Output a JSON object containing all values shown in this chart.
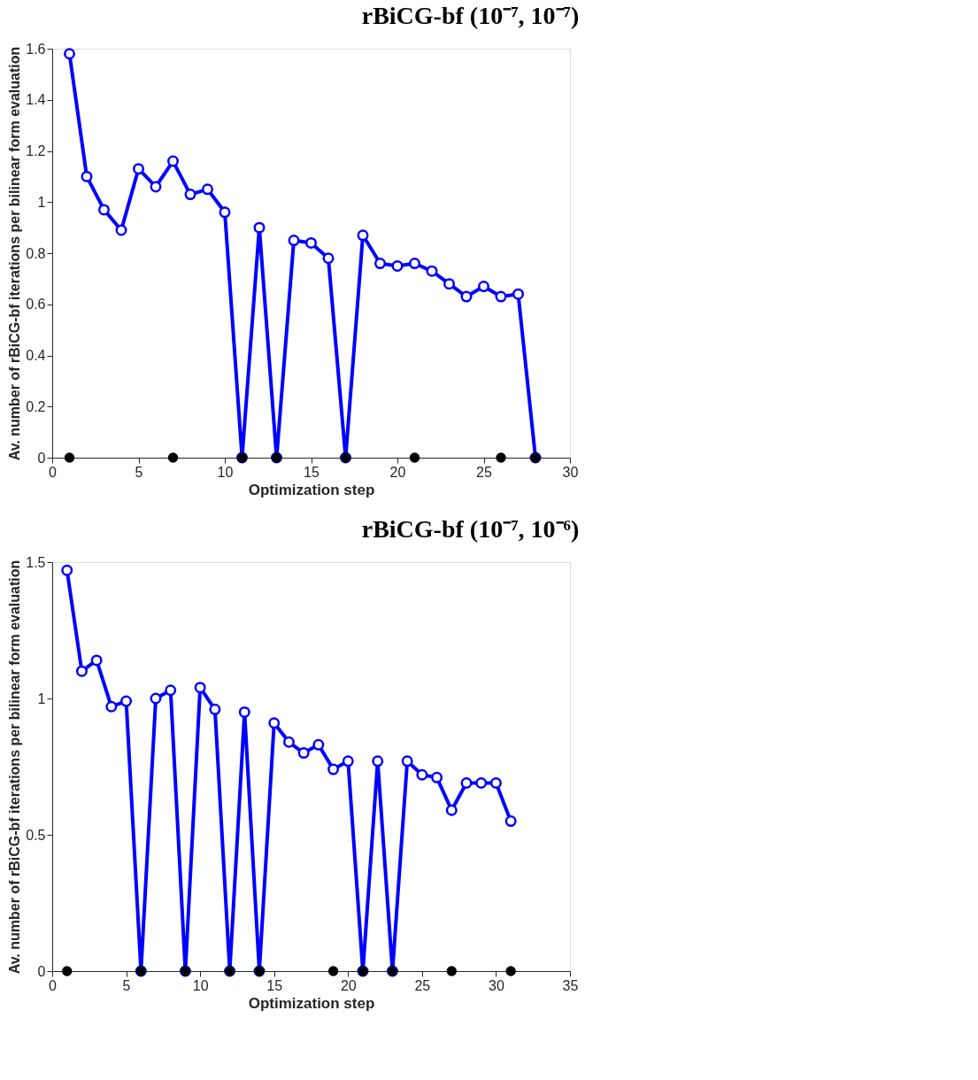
{
  "chart_data": [
    {
      "type": "line",
      "title": "rBiCG-bf (10⁻⁷, 10⁻⁷)",
      "xlabel": "Optimization step",
      "ylabel": "Av. number of rBiCG-bf iterations per bilinear form evaluation",
      "xlim": [
        0,
        30
      ],
      "xticks": [
        0,
        5,
        10,
        15,
        20,
        25,
        30
      ],
      "ylim": [
        0,
        1.6
      ],
      "yticks": [
        0,
        0.2,
        0.4,
        0.6,
        0.8,
        1,
        1.2,
        1.4,
        1.6
      ],
      "grid": false,
      "series": [
        {
          "type": "line",
          "marker": "circle",
          "color": "#0000ff",
          "x": [
            1,
            2,
            3,
            4,
            5,
            6,
            7,
            8,
            9,
            10,
            11,
            12,
            13,
            14,
            15,
            16,
            17,
            18,
            19,
            20,
            21,
            22,
            23,
            24,
            25,
            26,
            27,
            28
          ],
          "values": [
            1.58,
            1.1,
            0.97,
            0.89,
            1.13,
            1.06,
            1.16,
            1.03,
            1.05,
            0.96,
            0,
            0.9,
            0,
            0.85,
            0.84,
            0.78,
            0,
            0.87,
            0.76,
            0.75,
            0.76,
            0.73,
            0.68,
            0.63,
            0.67,
            0.63,
            0.64,
            0
          ]
        },
        {
          "type": "scatter",
          "marker": "circle",
          "color": "#000000",
          "x": [
            1,
            7,
            11,
            13,
            17,
            21,
            26,
            28
          ],
          "values": [
            0,
            0,
            0,
            0,
            0,
            0,
            0,
            0
          ]
        }
      ]
    },
    {
      "type": "line",
      "title": "rBiCG-bf (10⁻⁷, 10⁻⁶)",
      "xlabel": "Optimization step",
      "ylabel": "Av. number of rBiCG-bf iterations per bilinear form evaluation",
      "xlim": [
        0,
        35
      ],
      "xticks": [
        0,
        5,
        10,
        15,
        20,
        25,
        30,
        35
      ],
      "ylim": [
        0,
        1.5
      ],
      "yticks": [
        0,
        0.5,
        1,
        1.5
      ],
      "grid": false,
      "series": [
        {
          "type": "line",
          "marker": "circle",
          "color": "#0000ff",
          "x": [
            1,
            2,
            3,
            4,
            5,
            6,
            7,
            8,
            9,
            10,
            11,
            12,
            13,
            14,
            15,
            16,
            17,
            18,
            19,
            20,
            21,
            22,
            23,
            24,
            25,
            26,
            27,
            28,
            29,
            30,
            31
          ],
          "values": [
            1.47,
            1.1,
            1.14,
            0.97,
            0.99,
            0,
            1.0,
            1.03,
            0,
            1.04,
            0.96,
            0,
            0.95,
            0,
            0.91,
            0.84,
            0.8,
            0.83,
            0.74,
            0.77,
            0,
            0.77,
            0,
            0.77,
            0.72,
            0.71,
            0.59,
            0.69,
            0.69,
            0.69,
            0.55
          ]
        },
        {
          "type": "scatter",
          "marker": "circle",
          "color": "#000000",
          "x": [
            1,
            6,
            9,
            12,
            14,
            19,
            21,
            23,
            27,
            31
          ],
          "values": [
            0,
            0,
            0,
            0,
            0,
            0,
            0,
            0,
            0,
            0
          ]
        }
      ]
    }
  ]
}
